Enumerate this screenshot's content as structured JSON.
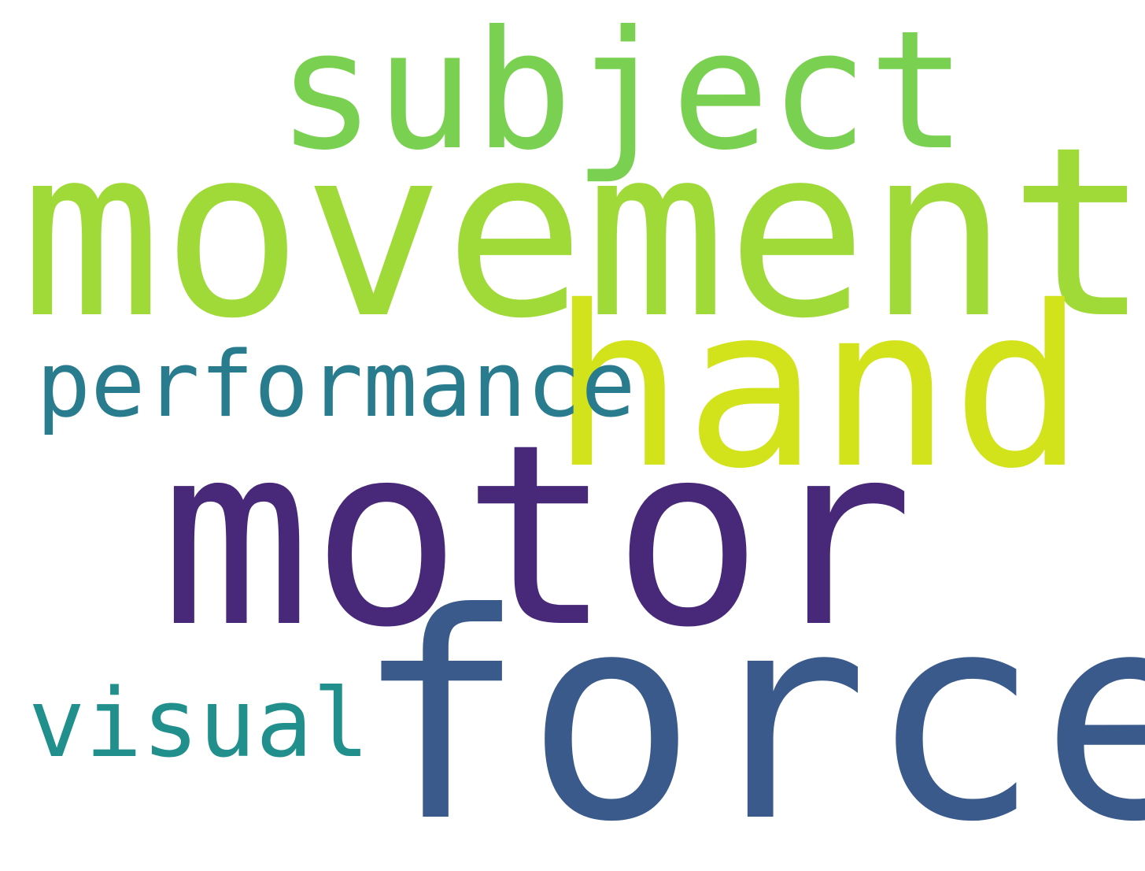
{
  "words": [
    {
      "text": "subject",
      "color": "#7ad151"
    },
    {
      "text": "movement",
      "color": "#a0da39"
    },
    {
      "text": "hand",
      "color": "#d2e21b"
    },
    {
      "text": "performance",
      "color": "#287c8e"
    },
    {
      "text": "motor",
      "color": "#482878"
    },
    {
      "text": "force",
      "color": "#3b5a8c"
    },
    {
      "text": "visual",
      "color": "#21908d"
    }
  ]
}
